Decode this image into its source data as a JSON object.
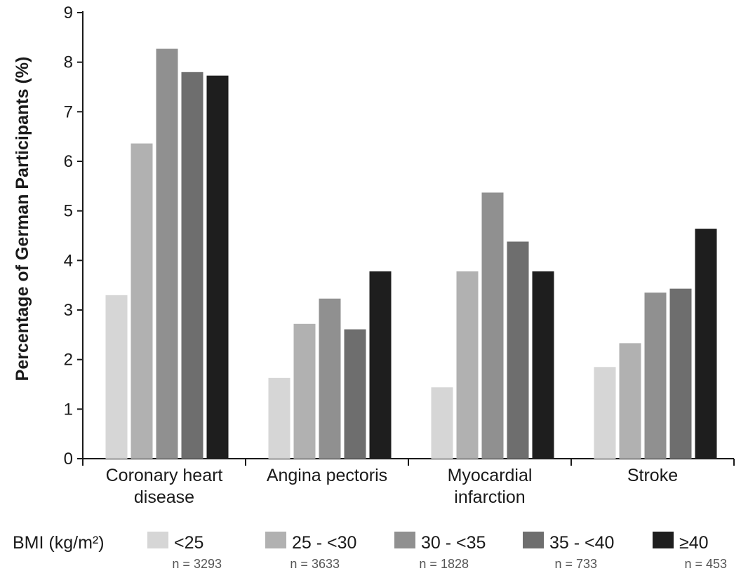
{
  "chart_data": {
    "type": "bar",
    "ylabel": "Percentage of German Participants (%)",
    "ylim": [
      0,
      9
    ],
    "yticks": [
      "0",
      "1",
      "2",
      "3",
      "4",
      "5",
      "6",
      "7",
      "8",
      "9"
    ],
    "categories": [
      [
        "Coronary heart",
        "disease"
      ],
      [
        "Angina pectoris"
      ],
      [
        "Myocardial",
        "infarction"
      ],
      [
        "Stroke"
      ]
    ],
    "series": [
      {
        "name": "<25",
        "n": "n = 3293",
        "color": "#d6d6d6",
        "values": [
          3.3,
          1.63,
          1.44,
          1.85
        ]
      },
      {
        "name": "25 - <30",
        "n": "n = 3633",
        "color": "#b1b1b1",
        "values": [
          6.36,
          2.72,
          3.78,
          2.33
        ]
      },
      {
        "name": "30 - <35",
        "n": "n = 1828",
        "color": "#909090",
        "values": [
          8.27,
          3.23,
          5.37,
          3.35
        ]
      },
      {
        "name": "35 - <40",
        "n": "n = 733",
        "color": "#6e6e6e",
        "values": [
          7.8,
          2.61,
          4.38,
          3.43
        ]
      },
      {
        "name": "≥40",
        "n": "n = 453",
        "color": "#1e1e1e",
        "values": [
          7.73,
          3.78,
          3.78,
          4.64
        ]
      }
    ],
    "legend": {
      "title": "BMI  (kg/m²)",
      "placement": "bottom"
    },
    "grid": false
  }
}
